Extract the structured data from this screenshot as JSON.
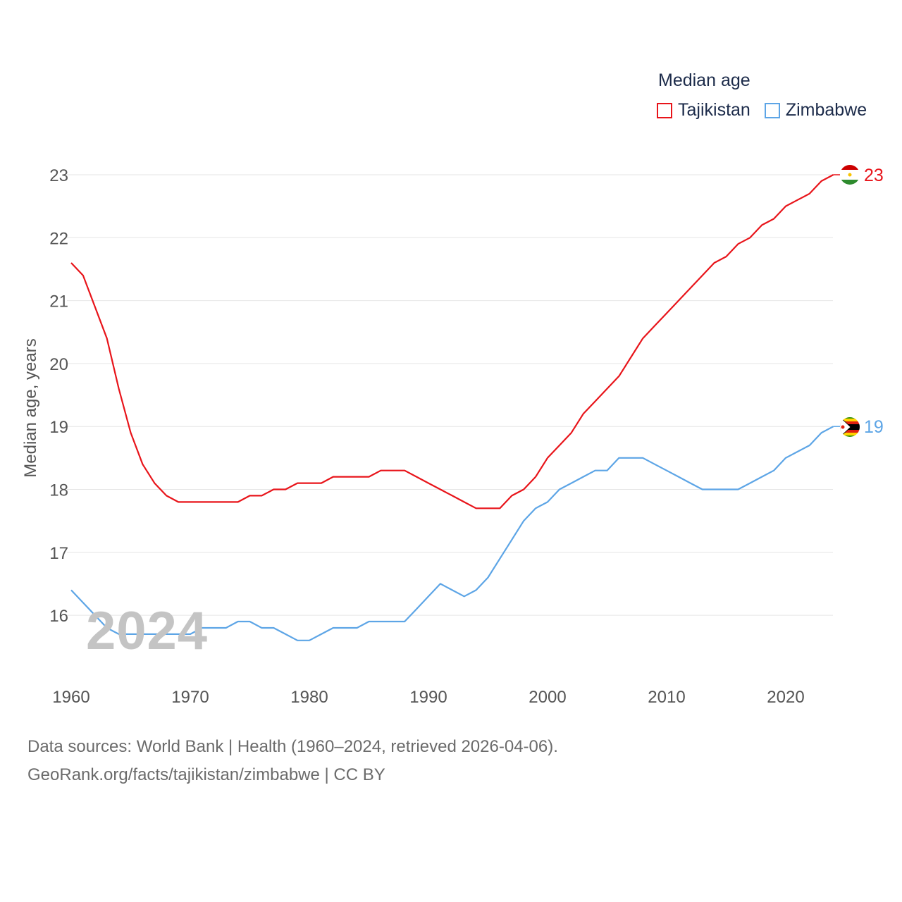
{
  "legend": {
    "title": "Median age",
    "items": [
      {
        "label": "Tajikistan",
        "color": "#e8141a"
      },
      {
        "label": "Zimbabwe",
        "color": "#5da5e6"
      }
    ]
  },
  "watermark_year": "2024",
  "footer": {
    "line1": "Data sources: World Bank | Health (1960–2024, retrieved 2026-04-06).",
    "line2": "GeoRank.org/facts/tajikistan/zimbabwe | CC BY"
  },
  "chart_data": {
    "type": "line",
    "title": "Median age",
    "xlabel": "",
    "ylabel": "Median age, years",
    "xlim": [
      1960,
      2024
    ],
    "ylim": [
      15.5,
      23
    ],
    "xticks": [
      1960,
      1970,
      1980,
      1990,
      2000,
      2010,
      2020
    ],
    "yticks": [
      16,
      17,
      18,
      19,
      20,
      21,
      22,
      23
    ],
    "x": [
      1960,
      1961,
      1962,
      1963,
      1964,
      1965,
      1966,
      1967,
      1968,
      1969,
      1970,
      1971,
      1972,
      1973,
      1974,
      1975,
      1976,
      1977,
      1978,
      1979,
      1980,
      1981,
      1982,
      1983,
      1984,
      1985,
      1986,
      1987,
      1988,
      1989,
      1990,
      1991,
      1992,
      1993,
      1994,
      1995,
      1996,
      1997,
      1998,
      1999,
      2000,
      2001,
      2002,
      2003,
      2004,
      2005,
      2006,
      2007,
      2008,
      2009,
      2010,
      2011,
      2012,
      2013,
      2014,
      2015,
      2016,
      2017,
      2018,
      2019,
      2020,
      2021,
      2022,
      2023,
      2024
    ],
    "series": [
      {
        "name": "Tajikistan",
        "color": "#e8141a",
        "end_label": "23",
        "values": [
          21.6,
          21.4,
          20.9,
          20.4,
          19.6,
          18.9,
          18.4,
          18.1,
          17.9,
          17.8,
          17.8,
          17.8,
          17.8,
          17.8,
          17.8,
          17.9,
          17.9,
          18.0,
          18.0,
          18.1,
          18.1,
          18.1,
          18.2,
          18.2,
          18.2,
          18.2,
          18.3,
          18.3,
          18.3,
          18.2,
          18.1,
          18.0,
          17.9,
          17.8,
          17.7,
          17.7,
          17.7,
          17.9,
          18.0,
          18.2,
          18.5,
          18.7,
          18.9,
          19.2,
          19.4,
          19.6,
          19.8,
          20.1,
          20.4,
          20.6,
          20.8,
          21.0,
          21.2,
          21.4,
          21.6,
          21.7,
          21.9,
          22.0,
          22.2,
          22.3,
          22.5,
          22.6,
          22.7,
          22.9,
          23.0
        ]
      },
      {
        "name": "Zimbabwe",
        "color": "#5da5e6",
        "end_label": "19",
        "values": [
          16.4,
          16.2,
          16.0,
          15.8,
          15.7,
          15.7,
          15.7,
          15.7,
          15.7,
          15.7,
          15.7,
          15.8,
          15.8,
          15.8,
          15.9,
          15.9,
          15.8,
          15.8,
          15.7,
          15.6,
          15.6,
          15.7,
          15.8,
          15.8,
          15.8,
          15.9,
          15.9,
          15.9,
          15.9,
          16.1,
          16.3,
          16.5,
          16.4,
          16.3,
          16.4,
          16.6,
          16.9,
          17.2,
          17.5,
          17.7,
          17.8,
          18.0,
          18.1,
          18.2,
          18.3,
          18.3,
          18.5,
          18.5,
          18.5,
          18.4,
          18.3,
          18.2,
          18.1,
          18.0,
          18.0,
          18.0,
          18.0,
          18.1,
          18.2,
          18.3,
          18.5,
          18.6,
          18.7,
          18.9,
          19.0
        ]
      }
    ]
  }
}
